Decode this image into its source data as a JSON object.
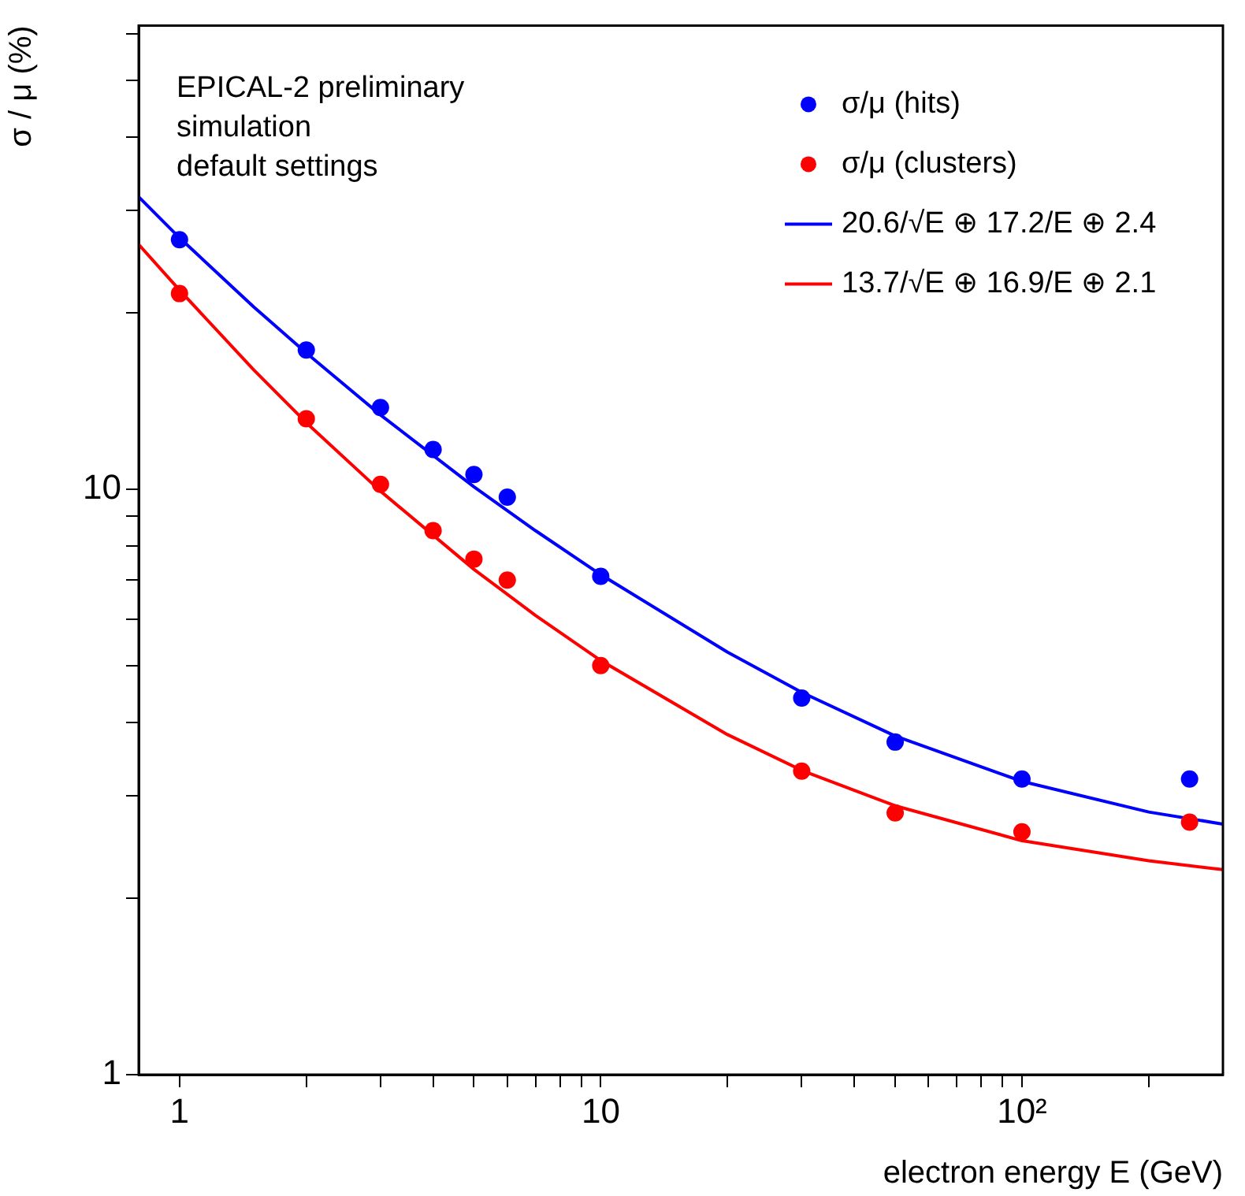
{
  "chart_data": {
    "type": "scatter",
    "xlabel": "electron energy E (GeV)",
    "ylabel": "σ / μ (%)",
    "log": "xy",
    "grid": false,
    "legend": "top right",
    "xlim": [
      0.8,
      300
    ],
    "ylim": [
      1,
      62
    ],
    "xticks": [
      1,
      {
        "value": 2,
        "label": null
      },
      {
        "value": 3,
        "label": null
      },
      {
        "value": 4,
        "label": null
      },
      {
        "value": 5,
        "label": null
      },
      {
        "value": 6,
        "label": null
      },
      {
        "value": 7,
        "label": null
      },
      {
        "value": 8,
        "label": null
      },
      {
        "value": 9,
        "label": null
      },
      10,
      {
        "value": 20,
        "label": null
      },
      {
        "value": 30,
        "label": null
      },
      {
        "value": 40,
        "label": null
      },
      {
        "value": 50,
        "label": null
      },
      {
        "value": 60,
        "label": null
      },
      {
        "value": 70,
        "label": null
      },
      {
        "value": 80,
        "label": null
      },
      {
        "value": 90,
        "label": null
      },
      {
        "value": 100,
        "label": "10²"
      },
      {
        "value": 200,
        "label": null
      }
    ],
    "yticks": [
      1,
      {
        "value": 2,
        "label": null
      },
      {
        "value": 3,
        "label": null
      },
      {
        "value": 4,
        "label": null
      },
      {
        "value": 5,
        "label": null
      },
      {
        "value": 6,
        "label": null
      },
      {
        "value": 7,
        "label": null
      },
      {
        "value": 8,
        "label": null
      },
      {
        "value": 9,
        "label": null
      },
      10,
      {
        "value": 20,
        "label": null
      },
      {
        "value": 30,
        "label": null
      },
      {
        "value": 40,
        "label": null
      },
      {
        "value": 50,
        "label": null
      },
      {
        "value": 60,
        "label": null
      }
    ],
    "annotations": [
      "EPICAL-2 preliminary",
      "simulation",
      "default settings"
    ],
    "series": [
      {
        "name": "σ/μ (hits)",
        "marker": "circle",
        "color": "#0000ff",
        "x": [
          1,
          2,
          3,
          4,
          5,
          6,
          10,
          30,
          50,
          100,
          250
        ],
        "values": [
          26.7,
          17.3,
          13.8,
          11.7,
          10.6,
          9.7,
          7.1,
          4.4,
          3.7,
          3.2,
          3.2
        ]
      },
      {
        "name": "σ/μ (clusters)",
        "marker": "circle",
        "color": "#ff0000",
        "x": [
          1,
          2,
          3,
          4,
          5,
          6,
          10,
          30,
          50,
          100,
          250
        ],
        "values": [
          21.6,
          13.2,
          10.2,
          8.5,
          7.6,
          7.0,
          5.0,
          3.3,
          2.8,
          2.6,
          2.7
        ]
      },
      {
        "name": "20.6/√E ⊕ 17.2/E ⊕ 2.4",
        "type": "line",
        "marker": "none",
        "line_style": "solid",
        "color": "#0000ff",
        "x": [
          0.8,
          1,
          1.5,
          2,
          3,
          5,
          7,
          10,
          20,
          30,
          50,
          100,
          200,
          300
        ],
        "values": [
          31.6,
          26.9,
          20.5,
          17.1,
          13.4,
          10.1,
          8.5,
          7.15,
          5.27,
          4.5,
          3.79,
          3.17,
          2.81,
          2.68
        ]
      },
      {
        "name": "13.7/√E ⊕ 16.9/E ⊕ 2.1",
        "type": "line",
        "marker": "none",
        "line_style": "solid",
        "color": "#ff0000",
        "x": [
          0.8,
          1,
          1.5,
          2,
          3,
          5,
          7,
          10,
          20,
          30,
          50,
          100,
          200,
          300
        ],
        "values": [
          26.2,
          21.9,
          16.0,
          13.0,
          9.93,
          7.3,
          6.09,
          5.1,
          3.81,
          3.31,
          2.88,
          2.51,
          2.32,
          2.24
        ]
      }
    ]
  }
}
